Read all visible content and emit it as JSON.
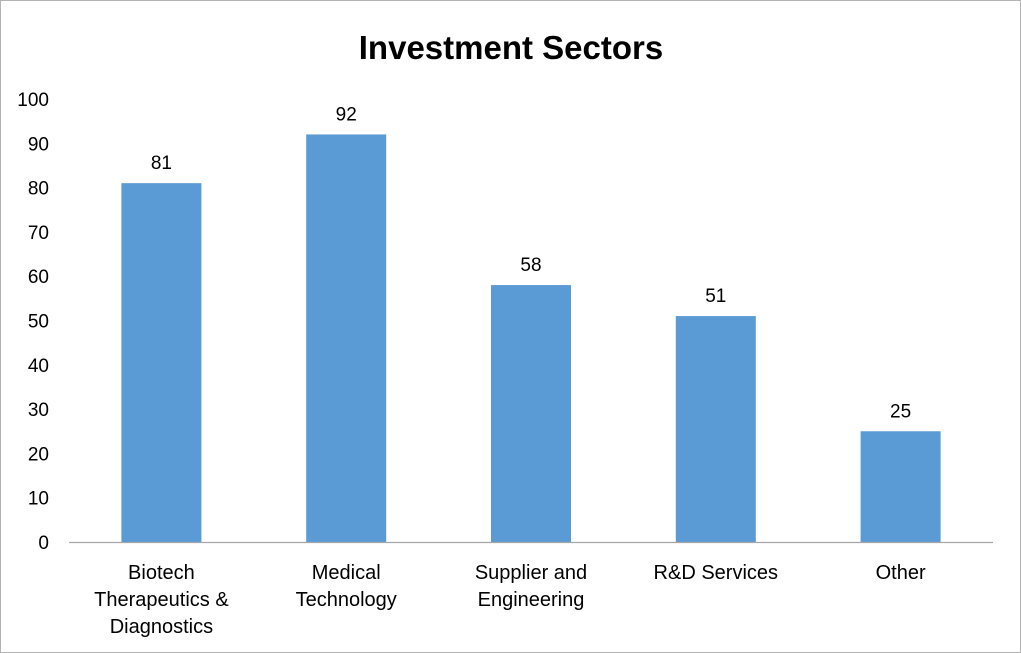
{
  "chart_data": {
    "type": "bar",
    "title": "Investment Sectors",
    "xlabel": "",
    "ylabel": "",
    "ylim": [
      0,
      100
    ],
    "yticks": [
      0,
      10,
      20,
      30,
      40,
      50,
      60,
      70,
      80,
      90,
      100
    ],
    "grid": false,
    "legend": "none",
    "categories": [
      [
        "Biotech",
        "Therapeutics &",
        "Diagnostics"
      ],
      [
        "Medical",
        "Technology"
      ],
      [
        "Supplier and",
        "Engineering"
      ],
      [
        "R&D Services"
      ],
      [
        "Other"
      ]
    ],
    "values": [
      81,
      92,
      58,
      51,
      25
    ],
    "bar_color": "#5B9BD5",
    "axis_color": "#a6a6a6"
  }
}
